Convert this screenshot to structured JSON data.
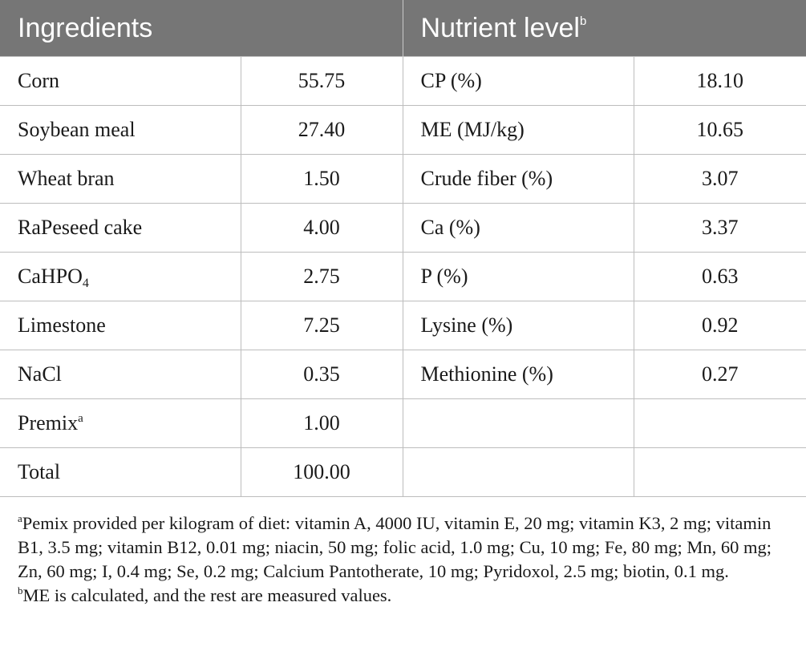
{
  "header": {
    "col1": "Ingredients",
    "col2": "Nutrient level",
    "col2_sup": "b"
  },
  "rows": [
    {
      "ing": "Corn",
      "ing_val": "55.75",
      "nut": "CP (%)",
      "nut_val": "18.10"
    },
    {
      "ing": "Soybean meal",
      "ing_val": "27.40",
      "nut": "ME (MJ/kg)",
      "nut_val": "10.65"
    },
    {
      "ing": "Wheat bran",
      "ing_val": "1.50",
      "nut": "Crude fiber (%)",
      "nut_val": "3.07"
    },
    {
      "ing": "RaPeseed cake",
      "ing_val": "4.00",
      "nut": "Ca (%)",
      "nut_val": "3.37"
    },
    {
      "ing": "CaHPO",
      "ing_sub": "4",
      "ing_val": "2.75",
      "nut": "P (%)",
      "nut_val": "0.63"
    },
    {
      "ing": "Limestone",
      "ing_val": "7.25",
      "nut": "Lysine (%)",
      "nut_val": "0.92"
    },
    {
      "ing": "NaCl",
      "ing_val": "0.35",
      "nut": "Methionine (%)",
      "nut_val": "0.27"
    },
    {
      "ing": "Premix",
      "ing_sup": "a",
      "ing_val": "1.00",
      "nut": "",
      "nut_val": ""
    },
    {
      "ing": "Total",
      "ing_val": "100.00",
      "nut": "",
      "nut_val": ""
    }
  ],
  "footnotes": {
    "a_mark": "a",
    "a_text": "Pemix provided per kilogram of diet: vitamin A, 4000 IU, vitamin E, 20 mg; vitamin K3, 2 mg; vitamin B1, 3.5 mg; vitamin B12, 0.01 mg; niacin, 50 mg; folic acid, 1.0 mg; Cu, 10 mg; Fe, 80 mg; Mn, 60 mg; Zn, 60 mg; I, 0.4 mg; Se, 0.2 mg; Calcium Pantotherate, 10 mg; Pyridoxol, 2.5 mg; biotin, 0.1 mg.",
    "b_mark": "b",
    "b_text": "ME is calculated, and the rest are measured values."
  }
}
